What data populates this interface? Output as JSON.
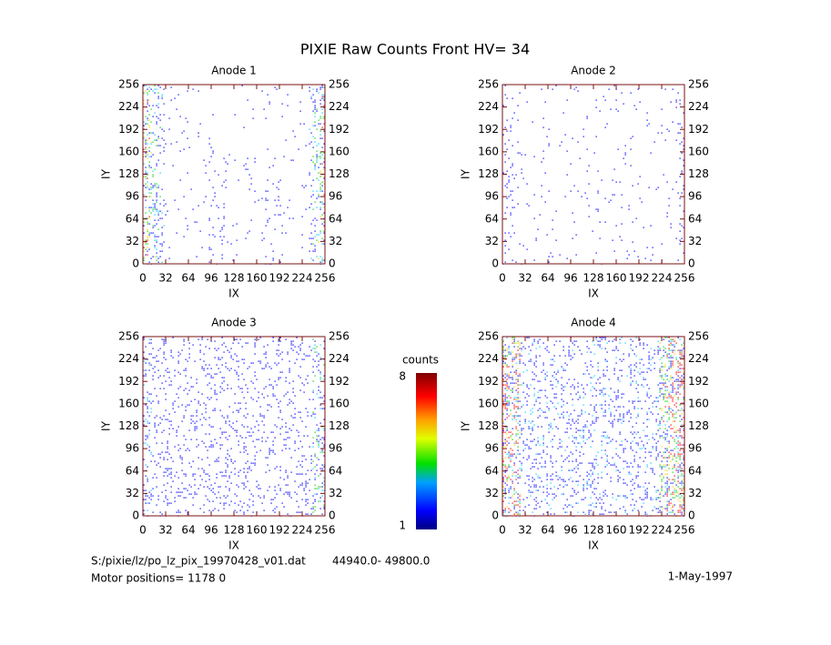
{
  "title": "PIXIE Raw Counts Front HV= 34",
  "chart_data": [
    {
      "type": "image",
      "title": "Anode 1",
      "xlabel": "IX",
      "ylabel": "IY",
      "xlim": [
        0,
        256
      ],
      "ylim": [
        0,
        256
      ],
      "xticks": [
        0,
        32,
        64,
        96,
        128,
        160,
        192,
        224,
        256
      ],
      "yticks": [
        0,
        32,
        64,
        96,
        128,
        160,
        192,
        224,
        256
      ]
    },
    {
      "type": "image",
      "title": "Anode 2",
      "xlabel": "IX",
      "ylabel": "IY",
      "xlim": [
        0,
        256
      ],
      "ylim": [
        0,
        256
      ],
      "xticks": [
        0,
        32,
        64,
        96,
        128,
        160,
        192,
        224,
        256
      ],
      "yticks": [
        0,
        32,
        64,
        96,
        128,
        160,
        192,
        224,
        256
      ]
    },
    {
      "type": "image",
      "title": "Anode 3",
      "xlabel": "IX",
      "ylabel": "IY",
      "xlim": [
        0,
        256
      ],
      "ylim": [
        0,
        256
      ],
      "xticks": [
        0,
        32,
        64,
        96,
        128,
        160,
        192,
        224,
        256
      ],
      "yticks": [
        0,
        32,
        64,
        96,
        128,
        160,
        192,
        224,
        256
      ]
    },
    {
      "type": "image",
      "title": "Anode 4",
      "xlabel": "IX",
      "ylabel": "IY",
      "xlim": [
        0,
        256
      ],
      "ylim": [
        0,
        256
      ],
      "xticks": [
        0,
        32,
        64,
        96,
        128,
        160,
        192,
        224,
        256
      ],
      "yticks": [
        0,
        32,
        64,
        96,
        128,
        160,
        192,
        224,
        256
      ]
    }
  ],
  "colorbar": {
    "label": "counts",
    "lim": [
      1,
      8
    ],
    "ticks": [
      1,
      8
    ]
  },
  "footer": {
    "file": "S:/pixie/lz/po_lz_pix_19970428_v01.dat",
    "range": "44940.0- 49800.0",
    "motor": "Motor positions= 1178 0",
    "date": "1-May-1997"
  }
}
